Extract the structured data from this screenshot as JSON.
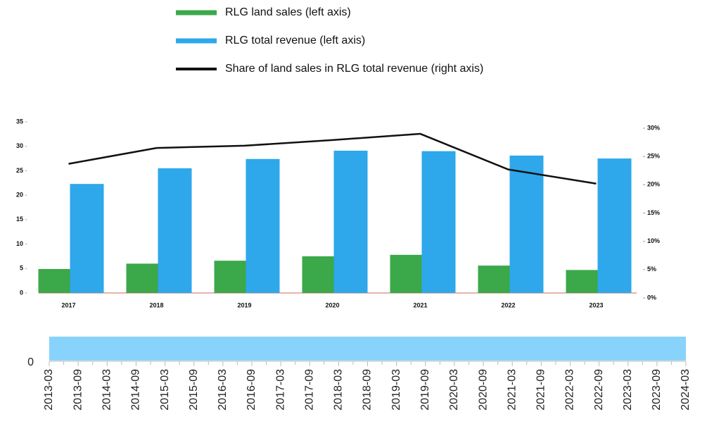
{
  "chart_data": [
    {
      "type": "bar",
      "categories": [
        "2017",
        "2018",
        "2019",
        "2020",
        "2021",
        "2022",
        "2023"
      ],
      "series": [
        {
          "name": "RLG land sales (left axis)",
          "color": "#3ba84a",
          "values": [
            4.9,
            6.0,
            6.6,
            7.5,
            7.8,
            5.6,
            4.7
          ]
        },
        {
          "name": "RLG total revenue (left axis)",
          "color": "#2ea8ea",
          "values": [
            22.3,
            25.5,
            27.4,
            29.1,
            29.0,
            28.1,
            27.5
          ]
        },
        {
          "name": "Share of land sales in RLG total revenue (right axis)",
          "color": "#111111",
          "type": "line",
          "axis": "y2",
          "values": [
            23.7,
            26.5,
            26.9,
            27.9,
            29.0,
            22.7,
            20.2
          ]
        }
      ],
      "ylim": [
        0,
        35
      ],
      "yticks": [
        0,
        5,
        10,
        15,
        20,
        25,
        30,
        35
      ],
      "y2lim": [
        0,
        30
      ],
      "y2ticks": [
        {
          "value": 0,
          "label": "0%"
        },
        {
          "value": 5,
          "label": "5%"
        },
        {
          "value": 10,
          "label": "10%"
        },
        {
          "value": 15,
          "label": "15%"
        },
        {
          "value": 20,
          "label": "20%"
        },
        {
          "value": 25,
          "label": "25%"
        },
        {
          "value": 30,
          "label": "30%"
        }
      ],
      "grid": false
    },
    {
      "type": "bar",
      "x": [
        "2013-03",
        "2013-09",
        "2014-03",
        "2014-09",
        "2015-03",
        "2015-09",
        "2016-03",
        "2016-09",
        "2017-03",
        "2017-09",
        "2018-03",
        "2018-09",
        "2019-03",
        "2019-09",
        "2020-03",
        "2020-09",
        "2021-03",
        "2021-09",
        "2022-03",
        "2022-09",
        "2023-03",
        "2023-09",
        "2024-03"
      ],
      "yticks": [
        0
      ]
    }
  ]
}
